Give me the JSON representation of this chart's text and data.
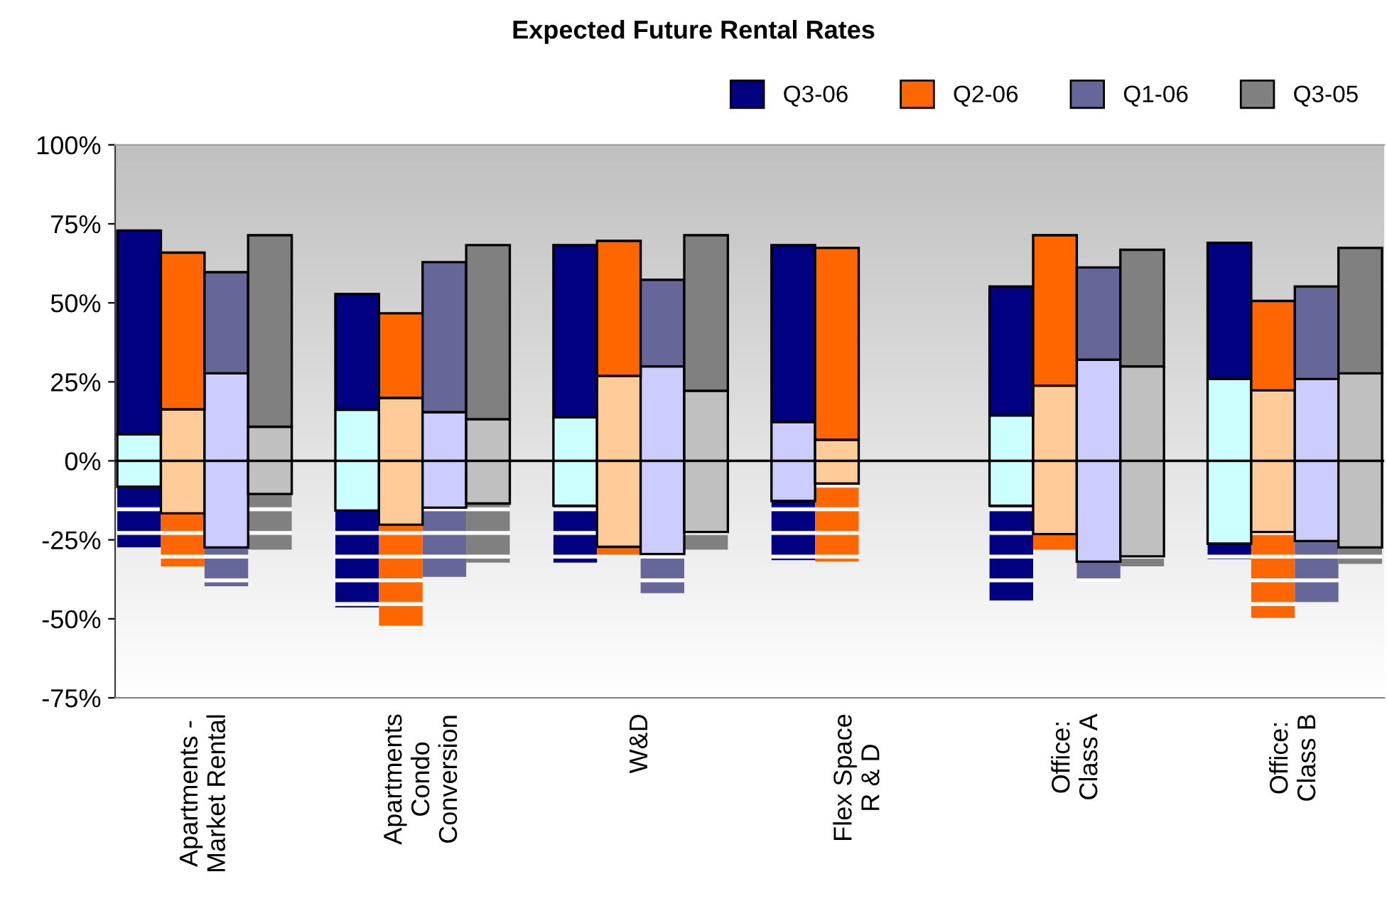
{
  "chart_data": {
    "type": "bar",
    "title": "Expected Future Rental Rates",
    "categories": [
      "Apartments -\nMarket Rental",
      "Apartments\nCondo\nConversion",
      "W&D",
      "Flex Space\nR & D",
      "Office:\nClass A",
      "Office:\nClass B"
    ],
    "series": [
      {
        "color": "#000080",
        "line_style": "dashed",
        "base": [
          -27.4,
          -46.4,
          -32.2,
          -31.4,
          -44.2,
          -31.1
        ],
        "values": [
          19.2,
          30.7,
          18.0,
          18.7,
          30.0,
          4.9
        ]
      },
      {
        "color": "#ff6600",
        "line_style": "dashed",
        "base": [
          -33.4,
          -53.4,
          -30.4,
          -31.9,
          -28.1,
          -49.7
        ],
        "values": [
          16.8,
          33.2,
          3.2,
          24.7,
          4.9,
          27.2
        ]
      },
      {
        "color": "#666699",
        "line_style": "dashed",
        "base": [
          -39.7,
          -36.7,
          -41.9,
          null,
          -38.2,
          -44.9
        ],
        "values": [
          12.3,
          21.9,
          12.4,
          null,
          6.3,
          19.5
        ]
      },
      {
        "color": "#808080",
        "line_style": "dashed",
        "base": [
          -28.1,
          -32.2,
          -28.1,
          null,
          -33.4,
          -32.6
        ],
        "values": [
          17.6,
          18.7,
          5.6,
          null,
          3.2,
          5.2
        ]
      },
      {
        "colors": [
          "#ccffff",
          "#ccffff",
          "#ccffff",
          "#ccccff",
          "#ccffff",
          "#ccffff"
        ],
        "base": [
          -8.2,
          -15.7,
          -14.2,
          -12.7,
          -14.2,
          -26.2
        ],
        "values": [
          16.6,
          31.9,
          28.0,
          25.0,
          28.6,
          52.1
        ]
      },
      {
        "color": "#ffcc99",
        "base": [
          -16.6,
          -20.2,
          -27.2,
          -7.2,
          -23.2,
          -22.5
        ],
        "values": [
          32.9,
          40.1,
          54.1,
          13.9,
          47.0,
          44.8
        ]
      },
      {
        "color": "#ccccff",
        "base": [
          -27.4,
          -14.8,
          -29.5,
          null,
          -31.9,
          -25.4
        ],
        "values": [
          55.1,
          30.2,
          59.4,
          null,
          63.9,
          51.3
        ]
      },
      {
        "color": "#c0c0c0",
        "base": [
          -10.5,
          -13.5,
          -22.5,
          null,
          -30.2,
          -27.4
        ],
        "values": [
          21.3,
          26.7,
          44.7,
          null,
          60.1,
          55.1
        ]
      },
      {
        "name": "Q3-06",
        "color": "#000080",
        "base": [
          8.4,
          16.2,
          13.8,
          12.3,
          14.4,
          25.9
        ],
        "values": [
          64.5,
          36.6,
          54.5,
          56.0,
          40.8,
          43.1
        ]
      },
      {
        "name": "Q2-06",
        "color": "#ff6600",
        "base": [
          16.3,
          19.9,
          26.9,
          6.7,
          23.8,
          22.3
        ],
        "values": [
          49.6,
          26.8,
          42.7,
          60.7,
          47.6,
          28.3
        ]
      },
      {
        "name": "Q1-06",
        "color": "#666699",
        "base": [
          27.7,
          15.4,
          29.9,
          null,
          32.0,
          25.9
        ],
        "values": [
          32.0,
          47.5,
          27.4,
          null,
          29.2,
          29.3
        ]
      },
      {
        "name": "Q3-05",
        "color": "#808080",
        "base": [
          10.8,
          13.2,
          22.2,
          null,
          29.9,
          27.7
        ],
        "values": [
          60.6,
          55.1,
          49.2,
          null,
          36.9,
          39.7
        ]
      }
    ],
    "ylim": [
      -75,
      100
    ],
    "yticks": [
      {
        "value": -75,
        "label": "-75%"
      },
      {
        "value": -50,
        "label": "-50%"
      },
      {
        "value": -25,
        "label": "-25%"
      },
      {
        "value": 0,
        "label": "0%"
      },
      {
        "value": 25,
        "label": "25%"
      },
      {
        "value": 50,
        "label": "50%"
      },
      {
        "value": 75,
        "label": "75%"
      },
      {
        "value": 100,
        "label": "100%"
      }
    ],
    "ref_lines": [
      {
        "axis": "y",
        "value": 0,
        "color": "#000000"
      }
    ],
    "legend": "top right"
  }
}
